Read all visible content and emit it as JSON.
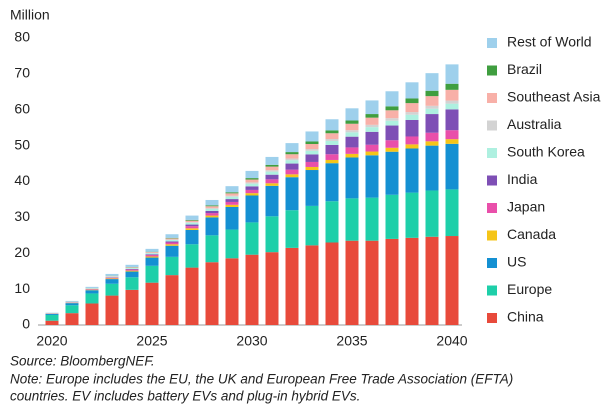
{
  "chart_data": {
    "type": "stacked-bar",
    "y_label": "Million",
    "categories": [
      "2020",
      null,
      null,
      null,
      null,
      "2025",
      null,
      null,
      null,
      null,
      "2030",
      null,
      null,
      null,
      null,
      "2035",
      null,
      null,
      null,
      null,
      "2040"
    ],
    "ylim": [
      0,
      80
    ],
    "yticks": [
      0,
      10,
      20,
      30,
      40,
      50,
      60,
      70,
      80
    ],
    "grid": false,
    "legend": "right",
    "series": [
      {
        "name": "China",
        "color": "#e84a3b",
        "values": [
          1.2,
          3.3,
          6,
          8.2,
          9.8,
          11.8,
          13.9,
          16,
          17.5,
          18.6,
          19.6,
          20.3,
          21.5,
          22.2,
          23,
          23.5,
          23.5,
          24,
          24.3,
          24.6,
          24.8
        ]
      },
      {
        "name": "Europe",
        "color": "#1ecfa9",
        "values": [
          1.6,
          2.2,
          2.8,
          3.3,
          3.5,
          4.7,
          5.1,
          6.5,
          7.5,
          8,
          9,
          10,
          10.5,
          11,
          11.5,
          11.8,
          12,
          12.3,
          12.6,
          12.9,
          13
        ]
      },
      {
        "name": "US",
        "color": "#1490d2",
        "values": [
          0.3,
          0.6,
          0.9,
          1.3,
          1.6,
          2.3,
          3.1,
          4,
          5,
          6.3,
          7.5,
          8.5,
          9.2,
          10,
          10.6,
          11.4,
          11.8,
          12,
          12.3,
          12.5,
          12.7
        ]
      },
      {
        "name": "Canada",
        "color": "#f5c518",
        "values": [
          0.05,
          0.1,
          0.15,
          0.2,
          0.25,
          0.3,
          0.4,
          0.45,
          0.5,
          0.6,
          0.65,
          0.7,
          0.8,
          0.85,
          0.9,
          1,
          1.05,
          1.1,
          1.15,
          1.2,
          1.3
        ]
      },
      {
        "name": "Japan",
        "color": "#e94faa",
        "values": [
          0.05,
          0.1,
          0.15,
          0.2,
          0.3,
          0.4,
          0.5,
          0.6,
          0.7,
          0.8,
          0.9,
          1.1,
          1.3,
          1.4,
          1.6,
          1.8,
          1.9,
          2.1,
          2.2,
          2.4,
          2.5
        ]
      },
      {
        "name": "India",
        "color": "#7e4fb5",
        "values": [
          0.02,
          0.03,
          0.05,
          0.1,
          0.15,
          0.2,
          0.3,
          0.45,
          0.6,
          0.8,
          1,
          1.3,
          1.7,
          2.1,
          2.6,
          3,
          3.6,
          4.1,
          4.6,
          5.2,
          5.8
        ]
      },
      {
        "name": "South Korea",
        "color": "#aef0e0",
        "values": [
          0.05,
          0.1,
          0.15,
          0.2,
          0.25,
          0.3,
          0.4,
          0.5,
          0.55,
          0.65,
          0.75,
          0.85,
          0.95,
          1,
          1.1,
          1.2,
          1.3,
          1.35,
          1.45,
          1.5,
          1.6
        ]
      },
      {
        "name": "Australia",
        "color": "#d3d3d3",
        "values": [
          0.02,
          0.03,
          0.05,
          0.08,
          0.1,
          0.12,
          0.15,
          0.2,
          0.25,
          0.3,
          0.35,
          0.4,
          0.45,
          0.5,
          0.55,
          0.6,
          0.65,
          0.7,
          0.75,
          0.8,
          0.85
        ]
      },
      {
        "name": "Southeast Asia",
        "color": "#f8b0a8",
        "values": [
          0.02,
          0.03,
          0.05,
          0.1,
          0.15,
          0.2,
          0.3,
          0.4,
          0.5,
          0.65,
          0.8,
          1,
          1.2,
          1.4,
          1.6,
          1.8,
          2,
          2.2,
          2.5,
          2.7,
          3
        ]
      },
      {
        "name": "Brazil",
        "color": "#3f9e3f",
        "values": [
          0.01,
          0.02,
          0.03,
          0.05,
          0.08,
          0.1,
          0.15,
          0.2,
          0.25,
          0.3,
          0.4,
          0.5,
          0.6,
          0.7,
          0.8,
          0.9,
          1,
          1.1,
          1.3,
          1.5,
          1.7
        ]
      },
      {
        "name": "Rest of World",
        "color": "#9ed0ec",
        "values": [
          0.1,
          0.2,
          0.3,
          0.5,
          0.6,
          0.8,
          1,
          1.2,
          1.5,
          1.7,
          2,
          2.2,
          2.5,
          2.8,
          3.1,
          3.4,
          3.8,
          4.2,
          4.5,
          4.9,
          5.4
        ]
      }
    ],
    "source": "Source: BloombergNEF.",
    "note_lines": [
      "Note: Europe includes the EU, the UK and European Free Trade Association (EFTA)",
      "countries. EV includes battery EVs and plug-in hybrid EVs."
    ]
  }
}
